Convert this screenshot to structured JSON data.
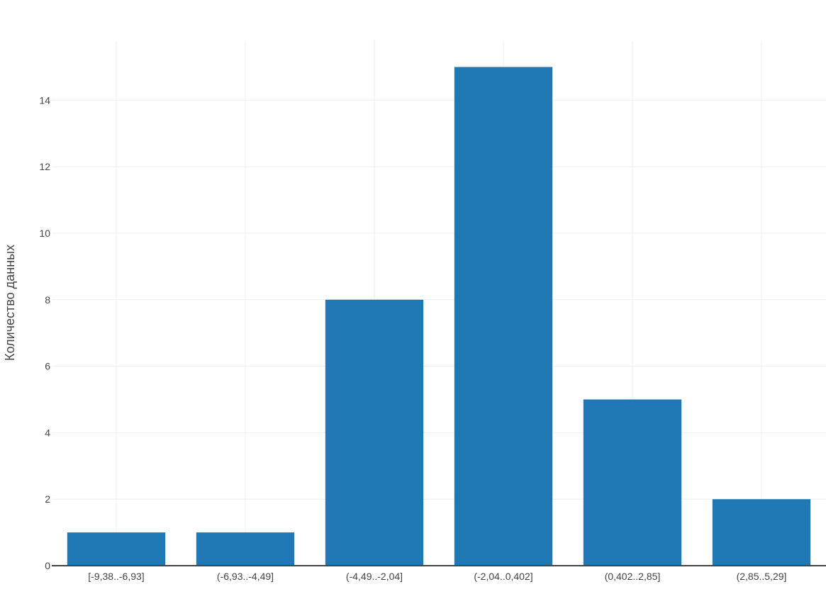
{
  "chart_data": {
    "type": "bar",
    "ylabel": "Количество данных",
    "xlabel": "",
    "categories": [
      "[-9,38..-6,93]",
      "(-6,93..-4,49]",
      "(-4,49..-2,04]",
      "(-2,04..0,402]",
      "(0,402..2,85]",
      "(2,85..5,29]"
    ],
    "values": [
      1,
      1,
      8,
      15,
      5,
      2
    ],
    "ylim": [
      0,
      15.8
    ],
    "yticks": [
      0,
      2,
      4,
      6,
      8,
      10,
      12,
      14
    ],
    "grid": true,
    "legend": "none",
    "bar_color": "#1f77b4",
    "grid_color": "#eeeeee",
    "axis_color": "#444444"
  }
}
